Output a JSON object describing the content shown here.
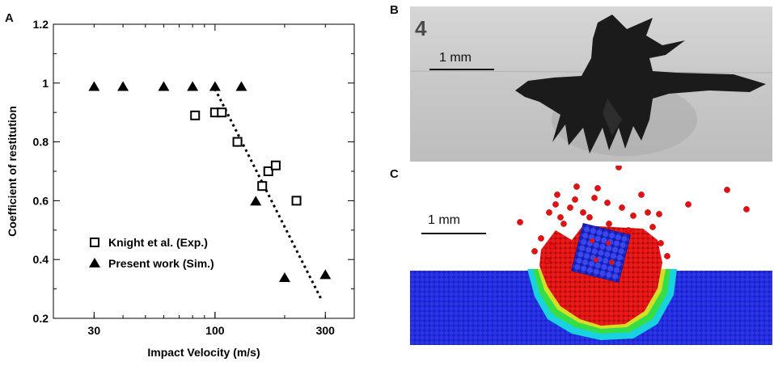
{
  "panels": {
    "a": "A",
    "b": "B",
    "c": "C"
  },
  "chart_data": {
    "type": "scatter",
    "xscale": "log",
    "xlabel": "Impact Velocity (m/s)",
    "ylabel": "Coefficient of restitution",
    "xlim": [
      20,
      400
    ],
    "ylim": [
      0.2,
      1.2
    ],
    "xticks": [
      30,
      100,
      300
    ],
    "yticks": [
      0.2,
      0.4,
      0.6,
      0.8,
      1.0,
      1.2
    ],
    "ytick_labels": [
      "0.2",
      "0.4",
      "0.6",
      "0.8",
      "1",
      "1.2"
    ],
    "legend_position": "lower-left",
    "grid": false,
    "series": [
      {
        "name": "Knight et al. (Exp.)",
        "marker": "open-square",
        "color": "#000000",
        "x": [
          82,
          100,
          107,
          125,
          160,
          170,
          183,
          225
        ],
        "y": [
          0.89,
          0.9,
          0.9,
          0.8,
          0.65,
          0.7,
          0.72,
          0.6
        ]
      },
      {
        "name": "Present work (Sim.)",
        "marker": "filled-triangle",
        "color": "#000000",
        "x": [
          30,
          40,
          60,
          80,
          100,
          130,
          150,
          200,
          300
        ],
        "y": [
          0.99,
          0.99,
          0.99,
          0.99,
          0.99,
          0.99,
          0.6,
          0.34,
          0.35
        ]
      }
    ],
    "trendline": {
      "style": "dotted",
      "x": [
        100,
        290
      ],
      "y": [
        0.98,
        0.26
      ]
    }
  },
  "panel_b": {
    "corner_label": "4",
    "scalebar_label": "1 mm"
  },
  "panel_c": {
    "scalebar_label": "1 mm",
    "colors": {
      "bed": "#1a22d6",
      "ejecta": "#e21212",
      "edge_green": "#3be03b",
      "edge_cyan": "#1ad9e0",
      "edge_yellow": "#d8e020"
    }
  }
}
